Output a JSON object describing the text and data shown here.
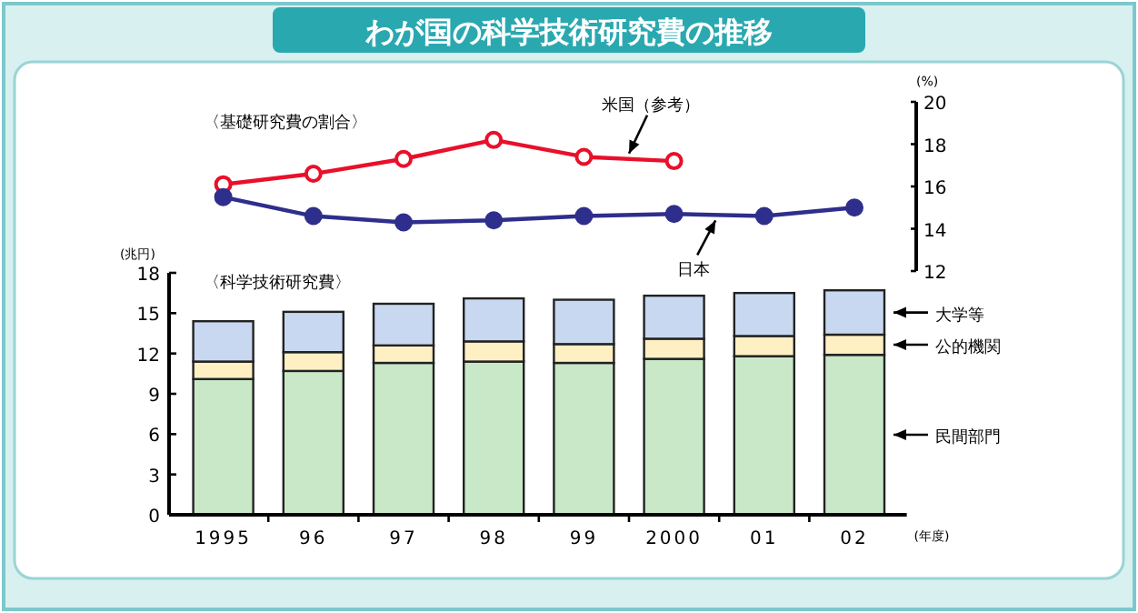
{
  "chart_data": [
    {
      "type": "line",
      "title": "わが国の科学技術研究費の推移",
      "subtitle": "〈基礎研究費の割合〉",
      "ylabel": "(%)",
      "categories": [
        null,
        null,
        null,
        null,
        null,
        null,
        null,
        null
      ],
      "series": [
        {
          "name": "米国（参考）",
          "color": "#e8102a",
          "values": [
            16.1,
            16.6,
            17.3,
            18.2,
            17.4,
            17.2,
            null,
            null
          ]
        },
        {
          "name": "日本",
          "color": "#2e2e8c",
          "values": [
            15.5,
            14.6,
            14.3,
            14.4,
            14.6,
            14.7,
            14.6,
            15.0
          ]
        }
      ],
      "ylim": [
        12,
        20
      ],
      "yticks": [
        12,
        14,
        16,
        18,
        20
      ],
      "marker": "circle",
      "tick_labels": "y"
    },
    {
      "type": "bar",
      "stacked": true,
      "subtitle": "〈科学技術研究費〉",
      "ylabel": "(兆円)",
      "xlabel": "(年度)",
      "categories": [
        "1995",
        "96",
        "97",
        "98",
        "99",
        "2000",
        "01",
        "02"
      ],
      "series": [
        {
          "name": "民間部門",
          "color": "#c8e8c8",
          "values": [
            10.1,
            10.7,
            11.3,
            11.4,
            11.3,
            11.6,
            11.8,
            11.9
          ]
        },
        {
          "name": "公的機関",
          "color": "#fff0c4",
          "values": [
            1.3,
            1.4,
            1.3,
            1.5,
            1.4,
            1.5,
            1.5,
            1.5
          ]
        },
        {
          "name": "大学等",
          "color": "#c8d8f0",
          "values": [
            3.0,
            3.0,
            3.1,
            3.2,
            3.3,
            3.2,
            3.2,
            3.3
          ]
        }
      ],
      "ylim": [
        0,
        18
      ],
      "yticks": [
        0,
        3,
        6,
        9,
        12,
        15,
        18
      ]
    }
  ]
}
